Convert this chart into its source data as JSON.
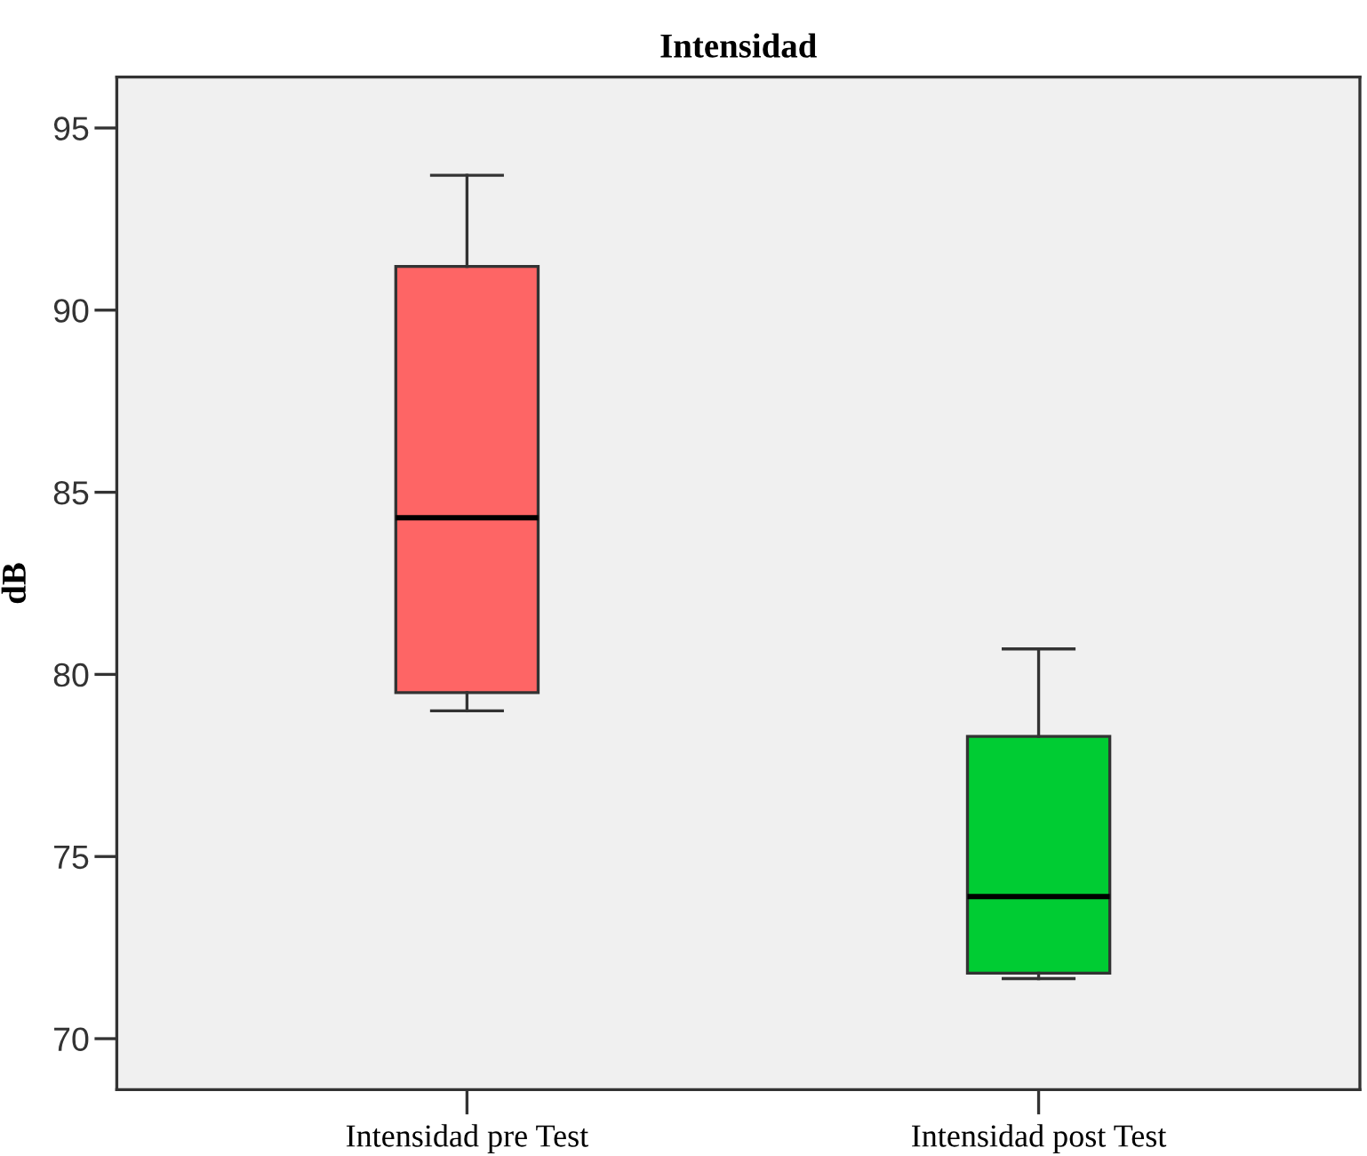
{
  "chart_data": {
    "type": "box",
    "title": "Intensidad",
    "ylabel": "dB",
    "categories": [
      "Intensidad pre Test",
      "Intensidad post Test"
    ],
    "boxes": [
      {
        "low": 79.0,
        "q1": 79.5,
        "median": 84.3,
        "q3": 91.2,
        "high": 93.7
      },
      {
        "low": 71.65,
        "q1": 71.8,
        "median": 73.9,
        "q3": 78.3,
        "high": 80.7
      }
    ],
    "colors": [
      "#fe6565",
      "#00cc33"
    ],
    "ylim": [
      68.6,
      96.4
    ],
    "yticks": [
      70,
      75,
      80,
      85,
      90,
      95
    ]
  }
}
